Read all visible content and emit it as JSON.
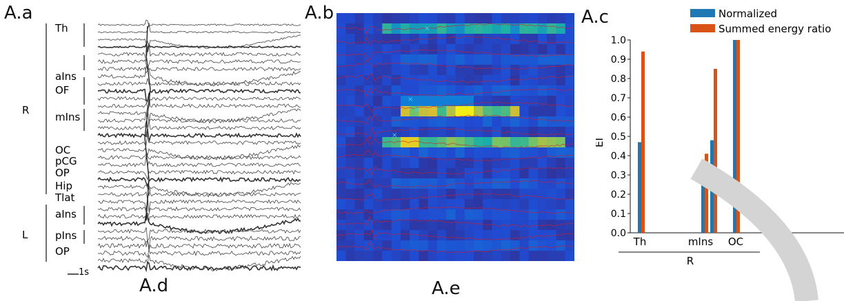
{
  "panels": {
    "a": {
      "label": "A.a"
    },
    "b": {
      "label": "A.b"
    },
    "c": {
      "label": "A.c"
    },
    "d": {
      "label": "A.d"
    },
    "e": {
      "label": "A.e"
    }
  },
  "eeg": {
    "right_hemisphere": "R",
    "left_hemisphere": "L",
    "channels_right": [
      "Th",
      "aIns",
      "OF",
      "mIns",
      "OC",
      "pCG",
      "OP",
      "Hip",
      "Tlat"
    ],
    "channels_left": [
      "aIns",
      "pIns",
      "OP"
    ],
    "scale_label": "1s"
  },
  "heatmap": {
    "colormap": "parula",
    "overlay_color": "#d21e2a"
  },
  "chart_data": {
    "type": "bar",
    "categories": [
      "Th",
      "mIns",
      "mIns",
      "OC"
    ],
    "category_tick_labels": [
      "Th",
      "mIns",
      "OC"
    ],
    "group_label": "R",
    "ylabel": "EI",
    "xlabel": "",
    "ylim": [
      0,
      1.0
    ],
    "yticks": [
      "0.0",
      "0.1",
      "0.2",
      "0.3",
      "0.4",
      "0.5",
      "0.6",
      "0.7",
      "0.8",
      "0.9",
      "1.0"
    ],
    "grid": false,
    "legend_position": "top-right",
    "series": [
      {
        "name": "Normalized",
        "color": "#1f77b4",
        "values": [
          0.47,
          0.27,
          0.48,
          1.0
        ]
      },
      {
        "name": "Summed energy ratio",
        "color": "#d95319",
        "values": [
          0.94,
          0.41,
          0.85,
          1.0
        ]
      }
    ]
  }
}
